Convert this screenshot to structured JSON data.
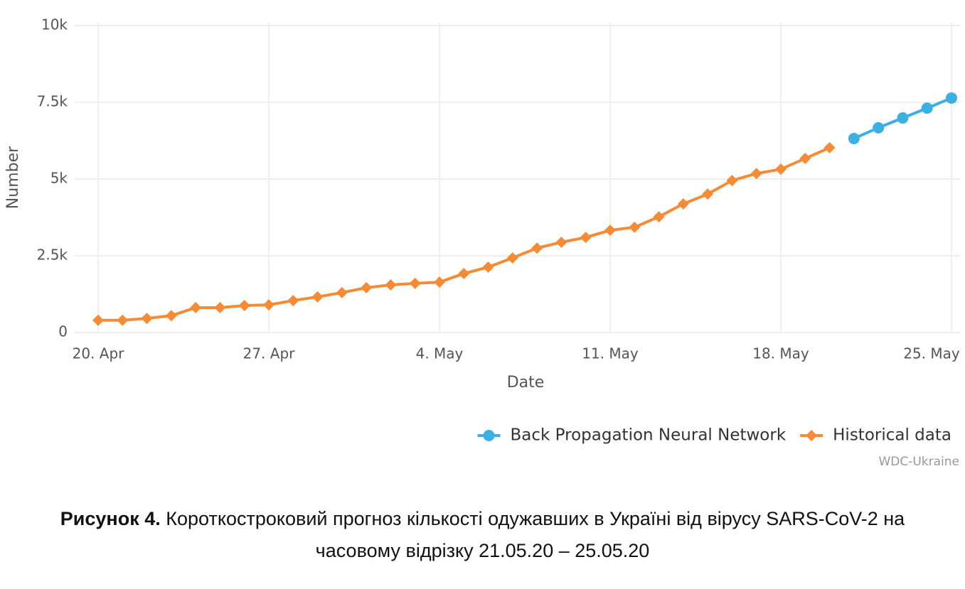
{
  "chart_data": {
    "type": "line",
    "x_label": "Date",
    "y_label": "Number",
    "categories": [
      "20. Apr",
      null,
      null,
      null,
      null,
      null,
      null,
      "27. Apr",
      null,
      null,
      null,
      null,
      null,
      null,
      "4. May",
      null,
      null,
      null,
      null,
      null,
      null,
      "11. May",
      null,
      null,
      null,
      null,
      null,
      null,
      "18. May",
      null,
      null,
      null,
      null,
      null,
      null,
      "25. May"
    ],
    "series": [
      {
        "name": "Back Propagation Neural Network",
        "color": "#3cb0e2",
        "marker": "circle",
        "values": [
          null,
          null,
          null,
          null,
          null,
          null,
          null,
          null,
          null,
          null,
          null,
          null,
          null,
          null,
          null,
          null,
          null,
          null,
          null,
          null,
          null,
          null,
          null,
          null,
          null,
          null,
          null,
          null,
          null,
          null,
          null,
          6320,
          6670,
          6990,
          7310,
          7640
        ]
      },
      {
        "name": "Historical data",
        "color": "#f48b37",
        "marker": "diamond",
        "values": [
          400,
          400,
          460,
          550,
          810,
          810,
          880,
          900,
          1040,
          1160,
          1300,
          1460,
          1550,
          1600,
          1640,
          1920,
          2130,
          2430,
          2750,
          2940,
          3100,
          3330,
          3430,
          3770,
          4190,
          4510,
          4950,
          5180,
          5320,
          5670,
          6020,
          null,
          null,
          null,
          null,
          null
        ]
      }
    ],
    "ylim": [
      0,
      10000
    ],
    "yticks": [
      0,
      {
        "value": 2500,
        "label": "2.5k"
      },
      {
        "value": 5000,
        "label": "5k"
      },
      {
        "value": 7500,
        "label": "7.5k"
      },
      {
        "value": 10000,
        "label": "10k"
      }
    ],
    "grid": true,
    "legend": "bottom-right",
    "credit": "WDC-Ukraine"
  },
  "caption": {
    "label": "Рисунок 4.",
    "text_lines": [
      "Короткостроковий прогноз кількості одужавших в Україні від вірусу SARS-CoV-2 на",
      "часовому відрізку 21.05.20 – 25.05.20"
    ]
  }
}
